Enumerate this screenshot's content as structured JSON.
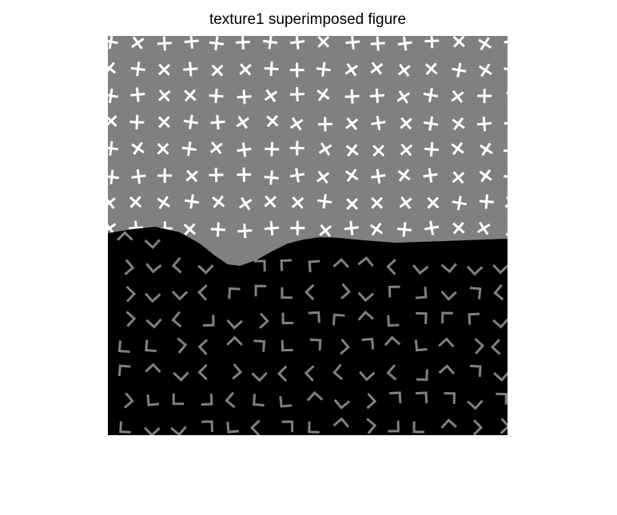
{
  "figure": {
    "title": "texture1 superimposed figure"
  },
  "image": {
    "description_colors": {
      "upper_background": "#808080",
      "upper_glyph": "#ffffff",
      "lower_background": "#000000",
      "lower_glyph": "#808080"
    },
    "upper_texture_glyph": "cross",
    "lower_texture_glyph": "corner"
  }
}
